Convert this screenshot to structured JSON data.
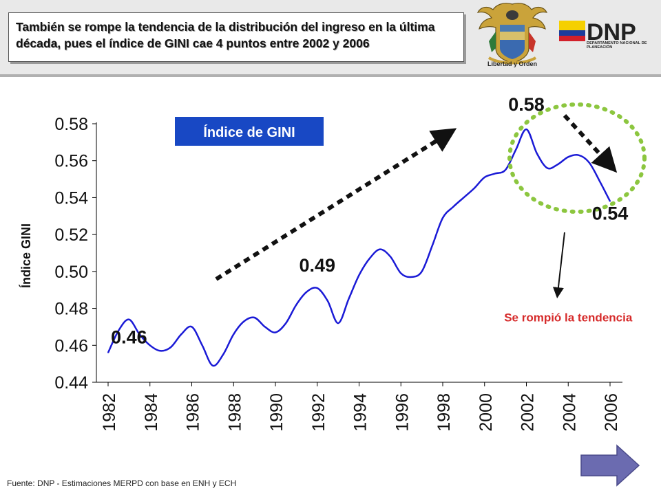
{
  "slide": {
    "title": "También se rompe la tendencia de la distribución del ingreso en la última década, pues el índice de GINI cae 4 puntos entre 2002 y 2006",
    "footer": "Fuente: DNP - Estimaciones MERPD con base en ENH y ECH",
    "seal_caption": "Libertad y Orden",
    "logo_text": "DNP",
    "logo_subtitle": "DEPARTAMENTO NACIONAL DE PLANEACIÓN"
  },
  "chart_data": {
    "type": "line",
    "title": "Índice de GINI",
    "ylabel": "Índice GINI",
    "xlabel": "",
    "ylim": [
      0.44,
      0.58
    ],
    "yticks": [
      "0.44",
      "0.46",
      "0.48",
      "0.50",
      "0.52",
      "0.54",
      "0.56",
      "0.58"
    ],
    "xticks": [
      "1982",
      "1984",
      "1986",
      "1988",
      "1990",
      "1992",
      "1994",
      "1996",
      "1998",
      "2000",
      "2002",
      "2004",
      "2006"
    ],
    "grid": false,
    "series": [
      {
        "name": "",
        "color": "#1a1ad6",
        "x": [
          1982,
          1982.5,
          1983,
          1983.5,
          1984,
          1984.5,
          1985,
          1985.5,
          1986,
          1986.5,
          1987,
          1987.5,
          1988,
          1988.5,
          1989,
          1989.5,
          1990,
          1990.5,
          1991,
          1991.5,
          1992,
          1992.5,
          1993,
          1993.5,
          1994,
          1994.5,
          1995,
          1995.5,
          1996,
          1996.5,
          1997,
          1997.5,
          1998,
          1998.5,
          1999,
          1999.5,
          2000,
          2000.5,
          2001,
          2001.5,
          2002,
          2002.5,
          2003,
          2003.5,
          2004,
          2004.5,
          2005,
          2005.5,
          2006
        ],
        "values": [
          0.456,
          0.468,
          0.474,
          0.466,
          0.46,
          0.457,
          0.459,
          0.466,
          0.47,
          0.46,
          0.449,
          0.455,
          0.466,
          0.473,
          0.475,
          0.47,
          0.467,
          0.472,
          0.482,
          0.489,
          0.491,
          0.484,
          0.472,
          0.485,
          0.498,
          0.507,
          0.512,
          0.508,
          0.499,
          0.497,
          0.5,
          0.514,
          0.529,
          0.535,
          0.54,
          0.545,
          0.551,
          0.553,
          0.555,
          0.566,
          0.577,
          0.564,
          0.556,
          0.558,
          0.562,
          0.563,
          0.559,
          0.549,
          0.538
        ]
      }
    ],
    "annotations": [
      {
        "text": "0.46",
        "x": 1983,
        "y": 0.461
      },
      {
        "text": "0.49",
        "x": 1992,
        "y": 0.5
      },
      {
        "text": "0.58",
        "x": 2002,
        "y": 0.587
      },
      {
        "text": "0.54",
        "x": 2006,
        "y": 0.528
      },
      {
        "text": "Se rompió la tendencia",
        "x": 2004,
        "y": 0.473,
        "color": "#d62a2a"
      }
    ]
  }
}
